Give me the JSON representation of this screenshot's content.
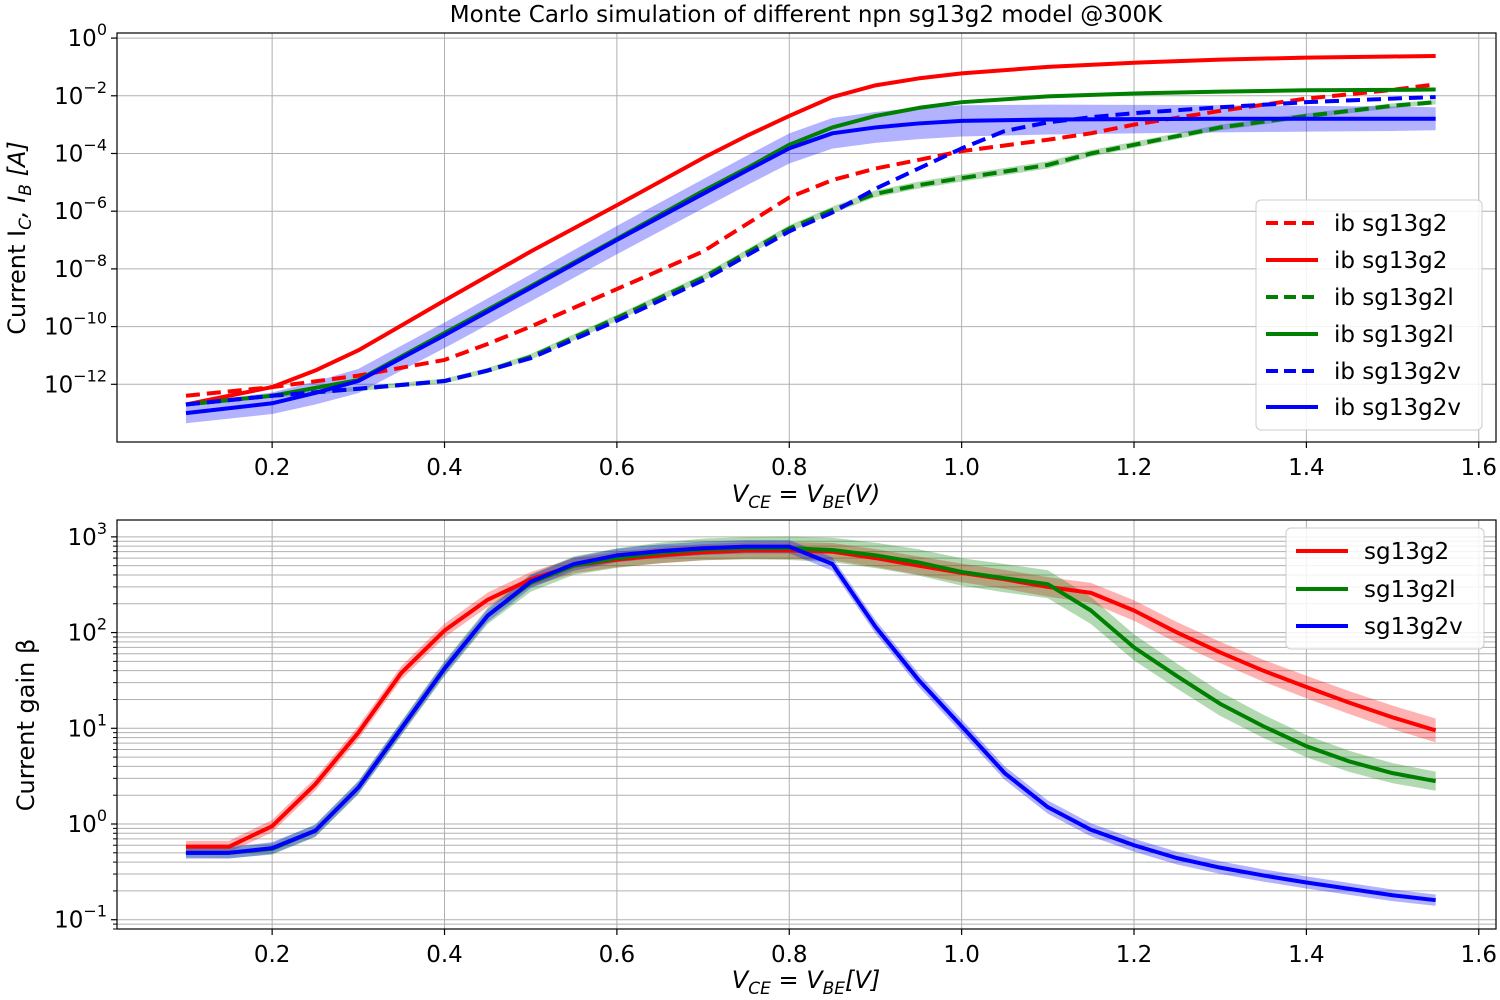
{
  "figure": {
    "background": "#ffffff"
  },
  "chart_data": [
    {
      "type": "line",
      "title": "Monte Carlo simulation of different npn sg13g2 model @300K",
      "xlabel_base": "V",
      "xlabel_sub1": "CE",
      "xlabel_mid": " = V",
      "xlabel_sub2": "BE",
      "xlabel_tail": "(V)",
      "ylabel_pre": "Current I",
      "ylabel_sub1": "C",
      "ylabel_mid": ", I",
      "ylabel_sub2": "B",
      "ylabel_tail": " [A]",
      "xlim": [
        0.02,
        1.62
      ],
      "ylim": [
        1e-14,
        1.5
      ],
      "yscale": "log",
      "grid": true,
      "legend": "right",
      "x_ticks": [
        {
          "v": 0.2,
          "label": "0.2"
        },
        {
          "v": 0.4,
          "label": "0.4"
        },
        {
          "v": 0.6,
          "label": "0.6"
        },
        {
          "v": 0.8,
          "label": "0.8"
        },
        {
          "v": 1.0,
          "label": "1.0"
        },
        {
          "v": 1.2,
          "label": "1.2"
        },
        {
          "v": 1.4,
          "label": "1.4"
        },
        {
          "v": 1.6,
          "label": "1.6"
        }
      ],
      "y_ticks": [
        {
          "v": 1,
          "base": "10",
          "exp": "0"
        },
        {
          "v": 0.01,
          "base": "10",
          "exp": "−2"
        },
        {
          "v": 0.0001,
          "base": "10",
          "exp": "−4"
        },
        {
          "v": 1e-06,
          "base": "10",
          "exp": "−6"
        },
        {
          "v": 1e-08,
          "base": "10",
          "exp": "−8"
        },
        {
          "v": 1e-10,
          "base": "10",
          "exp": "−10"
        },
        {
          "v": 1e-12,
          "base": "10",
          "exp": "−12"
        }
      ],
      "series": [
        {
          "name": "ib sg13g2",
          "color": "#ff0000",
          "dashed": true,
          "x": [
            0.1,
            0.2,
            0.3,
            0.4,
            0.45,
            0.5,
            0.6,
            0.7,
            0.8,
            0.85,
            0.9,
            1.0,
            1.1,
            1.15,
            1.2,
            1.3,
            1.4,
            1.5,
            1.55
          ],
          "y": [
            4e-13,
            8e-13,
            2e-12,
            7e-12,
            2.5e-11,
            1e-10,
            2e-09,
            4e-08,
            3e-06,
            1.2e-05,
            3e-05,
            0.00012,
            0.0003,
            0.0005,
            0.001,
            0.003,
            0.008,
            0.016,
            0.025
          ]
        },
        {
          "name": "ib sg13g2",
          "color": "#ff0000",
          "dashed": false,
          "x": [
            0.1,
            0.2,
            0.25,
            0.3,
            0.4,
            0.5,
            0.6,
            0.7,
            0.75,
            0.8,
            0.85,
            0.9,
            0.95,
            1.0,
            1.1,
            1.2,
            1.3,
            1.4,
            1.5,
            1.55
          ],
          "y": [
            2e-13,
            8e-13,
            3e-12,
            1.5e-11,
            8e-10,
            4e-08,
            1.6e-06,
            7e-05,
            0.0004,
            0.002,
            0.009,
            0.023,
            0.04,
            0.06,
            0.1,
            0.14,
            0.18,
            0.21,
            0.23,
            0.24
          ]
        },
        {
          "name": "ib sg13g2l",
          "color": "#008000",
          "dashed": true,
          "x": [
            0.1,
            0.2,
            0.3,
            0.4,
            0.45,
            0.5,
            0.6,
            0.7,
            0.8,
            0.85,
            0.9,
            0.95,
            1.0,
            1.1,
            1.15,
            1.2,
            1.3,
            1.4,
            1.5,
            1.55
          ],
          "y": [
            2e-13,
            4e-13,
            7e-13,
            1.3e-12,
            3e-12,
            9e-12,
            2e-10,
            5e-09,
            2.5e-07,
            1.1e-06,
            4e-06,
            8e-06,
            1.4e-05,
            4e-05,
            0.0001,
            0.0002,
            0.0008,
            0.002,
            0.0045,
            0.006
          ],
          "band": [
            0.12,
            0.22,
            0.25,
            0.15
          ]
        },
        {
          "name": "ib sg13g2l",
          "color": "#008000",
          "dashed": false,
          "x": [
            0.1,
            0.2,
            0.3,
            0.4,
            0.5,
            0.6,
            0.7,
            0.75,
            0.8,
            0.85,
            0.9,
            0.95,
            1.0,
            1.1,
            1.2,
            1.3,
            1.4,
            1.5,
            1.55
          ],
          "y": [
            2e-13,
            4e-13,
            1.4e-12,
            6e-11,
            2.5e-09,
            1.1e-07,
            5e-06,
            3e-05,
            0.0002,
            0.0008,
            0.002,
            0.0038,
            0.006,
            0.0095,
            0.012,
            0.014,
            0.0155,
            0.016,
            0.0165
          ]
        },
        {
          "name": "ib sg13g2v",
          "color": "#0000ff",
          "dashed": true,
          "x": [
            0.1,
            0.2,
            0.3,
            0.4,
            0.45,
            0.5,
            0.6,
            0.7,
            0.8,
            0.85,
            0.9,
            0.95,
            1.0,
            1.05,
            1.1,
            1.15,
            1.2,
            1.3,
            1.4,
            1.5,
            1.55
          ],
          "y": [
            2e-13,
            4e-13,
            7e-13,
            1.3e-12,
            3e-12,
            8e-12,
            1.6e-10,
            4e-09,
            2e-07,
            9e-07,
            6e-06,
            3e-05,
            0.00015,
            0.0006,
            0.0012,
            0.0018,
            0.0025,
            0.004,
            0.006,
            0.008,
            0.009
          ]
        },
        {
          "name": "ib sg13g2v",
          "color": "#0000ff",
          "dashed": false,
          "x": [
            0.1,
            0.2,
            0.25,
            0.3,
            0.4,
            0.5,
            0.6,
            0.7,
            0.75,
            0.8,
            0.85,
            0.9,
            0.95,
            1.0,
            1.1,
            1.2,
            1.3,
            1.4,
            1.5,
            1.55
          ],
          "y": [
            1e-13,
            2.2e-13,
            5e-13,
            1.3e-12,
            5e-11,
            2.2e-09,
            1e-07,
            4e-06,
            2.5e-05,
            0.00015,
            0.0005,
            0.0008,
            0.0011,
            0.00135,
            0.0015,
            0.00155,
            0.0016,
            0.0016,
            0.0016,
            0.0016
          ],
          "band": [
            0.7,
            1.0,
            1.1,
            0.8
          ]
        }
      ]
    },
    {
      "type": "line",
      "title": "",
      "xlabel_base": "V",
      "xlabel_sub1": "CE",
      "xlabel_mid": " = V",
      "xlabel_sub2": "BE",
      "xlabel_tail": "[V]",
      "ylabel": "Current gain β",
      "xlim": [
        0.02,
        1.62
      ],
      "ylim": [
        0.08,
        1500
      ],
      "yscale": "log",
      "grid": true,
      "legend": "top-right",
      "x_ticks": [
        {
          "v": 0.2,
          "label": "0.2"
        },
        {
          "v": 0.4,
          "label": "0.4"
        },
        {
          "v": 0.6,
          "label": "0.6"
        },
        {
          "v": 0.8,
          "label": "0.8"
        },
        {
          "v": 1.0,
          "label": "1.0"
        },
        {
          "v": 1.2,
          "label": "1.2"
        },
        {
          "v": 1.4,
          "label": "1.4"
        },
        {
          "v": 1.6,
          "label": "1.6"
        }
      ],
      "y_ticks": [
        {
          "v": 1000,
          "base": "10",
          "exp": "3"
        },
        {
          "v": 100,
          "base": "10",
          "exp": "2"
        },
        {
          "v": 10,
          "base": "10",
          "exp": "1"
        },
        {
          "v": 1,
          "base": "10",
          "exp": "0"
        },
        {
          "v": 0.1,
          "base": "10",
          "exp": "−1"
        }
      ],
      "series": [
        {
          "name": "sg13g2",
          "color": "#ff0000",
          "dashed": false,
          "x": [
            0.1,
            0.15,
            0.2,
            0.25,
            0.3,
            0.35,
            0.4,
            0.45,
            0.5,
            0.55,
            0.6,
            0.65,
            0.7,
            0.75,
            0.8,
            0.85,
            0.9,
            0.95,
            1.0,
            1.05,
            1.1,
            1.15,
            1.2,
            1.25,
            1.3,
            1.35,
            1.4,
            1.45,
            1.5,
            1.55
          ],
          "y": [
            0.58,
            0.58,
            0.95,
            2.6,
            9,
            38,
            105,
            220,
            360,
            500,
            580,
            640,
            690,
            720,
            720,
            700,
            600,
            500,
            420,
            360,
            300,
            260,
            170,
            100,
            62,
            40,
            27,
            18.5,
            13,
            9.5
          ],
          "band": [
            0.12,
            0.16,
            0.2,
            0.25
          ]
        },
        {
          "name": "sg13g2l",
          "color": "#008000",
          "dashed": false,
          "x": [
            0.1,
            0.15,
            0.2,
            0.25,
            0.3,
            0.35,
            0.4,
            0.45,
            0.5,
            0.55,
            0.6,
            0.65,
            0.7,
            0.75,
            0.8,
            0.85,
            0.9,
            0.95,
            1.0,
            1.05,
            1.1,
            1.15,
            1.2,
            1.25,
            1.3,
            1.35,
            1.4,
            1.45,
            1.5,
            1.55
          ],
          "y": [
            0.5,
            0.5,
            0.55,
            0.85,
            2.4,
            10,
            42,
            150,
            330,
            500,
            600,
            680,
            740,
            760,
            760,
            730,
            640,
            540,
            430,
            370,
            320,
            170,
            70,
            35,
            18,
            10.5,
            6.5,
            4.5,
            3.4,
            2.8
          ],
          "band": [
            0.1,
            0.2,
            0.3,
            0.2
          ]
        },
        {
          "name": "sg13g2v",
          "color": "#0000ff",
          "dashed": false,
          "x": [
            0.1,
            0.15,
            0.2,
            0.25,
            0.3,
            0.35,
            0.4,
            0.45,
            0.5,
            0.55,
            0.6,
            0.65,
            0.7,
            0.75,
            0.8,
            0.85,
            0.9,
            0.95,
            1.0,
            1.05,
            1.1,
            1.15,
            1.2,
            1.25,
            1.3,
            1.35,
            1.4,
            1.45,
            1.5,
            1.55
          ],
          "y": [
            0.5,
            0.5,
            0.56,
            0.85,
            2.4,
            10,
            42,
            150,
            340,
            520,
            640,
            710,
            760,
            790,
            790,
            520,
            115,
            32,
            10.5,
            3.4,
            1.5,
            0.87,
            0.6,
            0.44,
            0.35,
            0.29,
            0.245,
            0.21,
            0.18,
            0.16
          ],
          "band": [
            0.12,
            0.14,
            0.14,
            0.12
          ]
        }
      ]
    }
  ]
}
